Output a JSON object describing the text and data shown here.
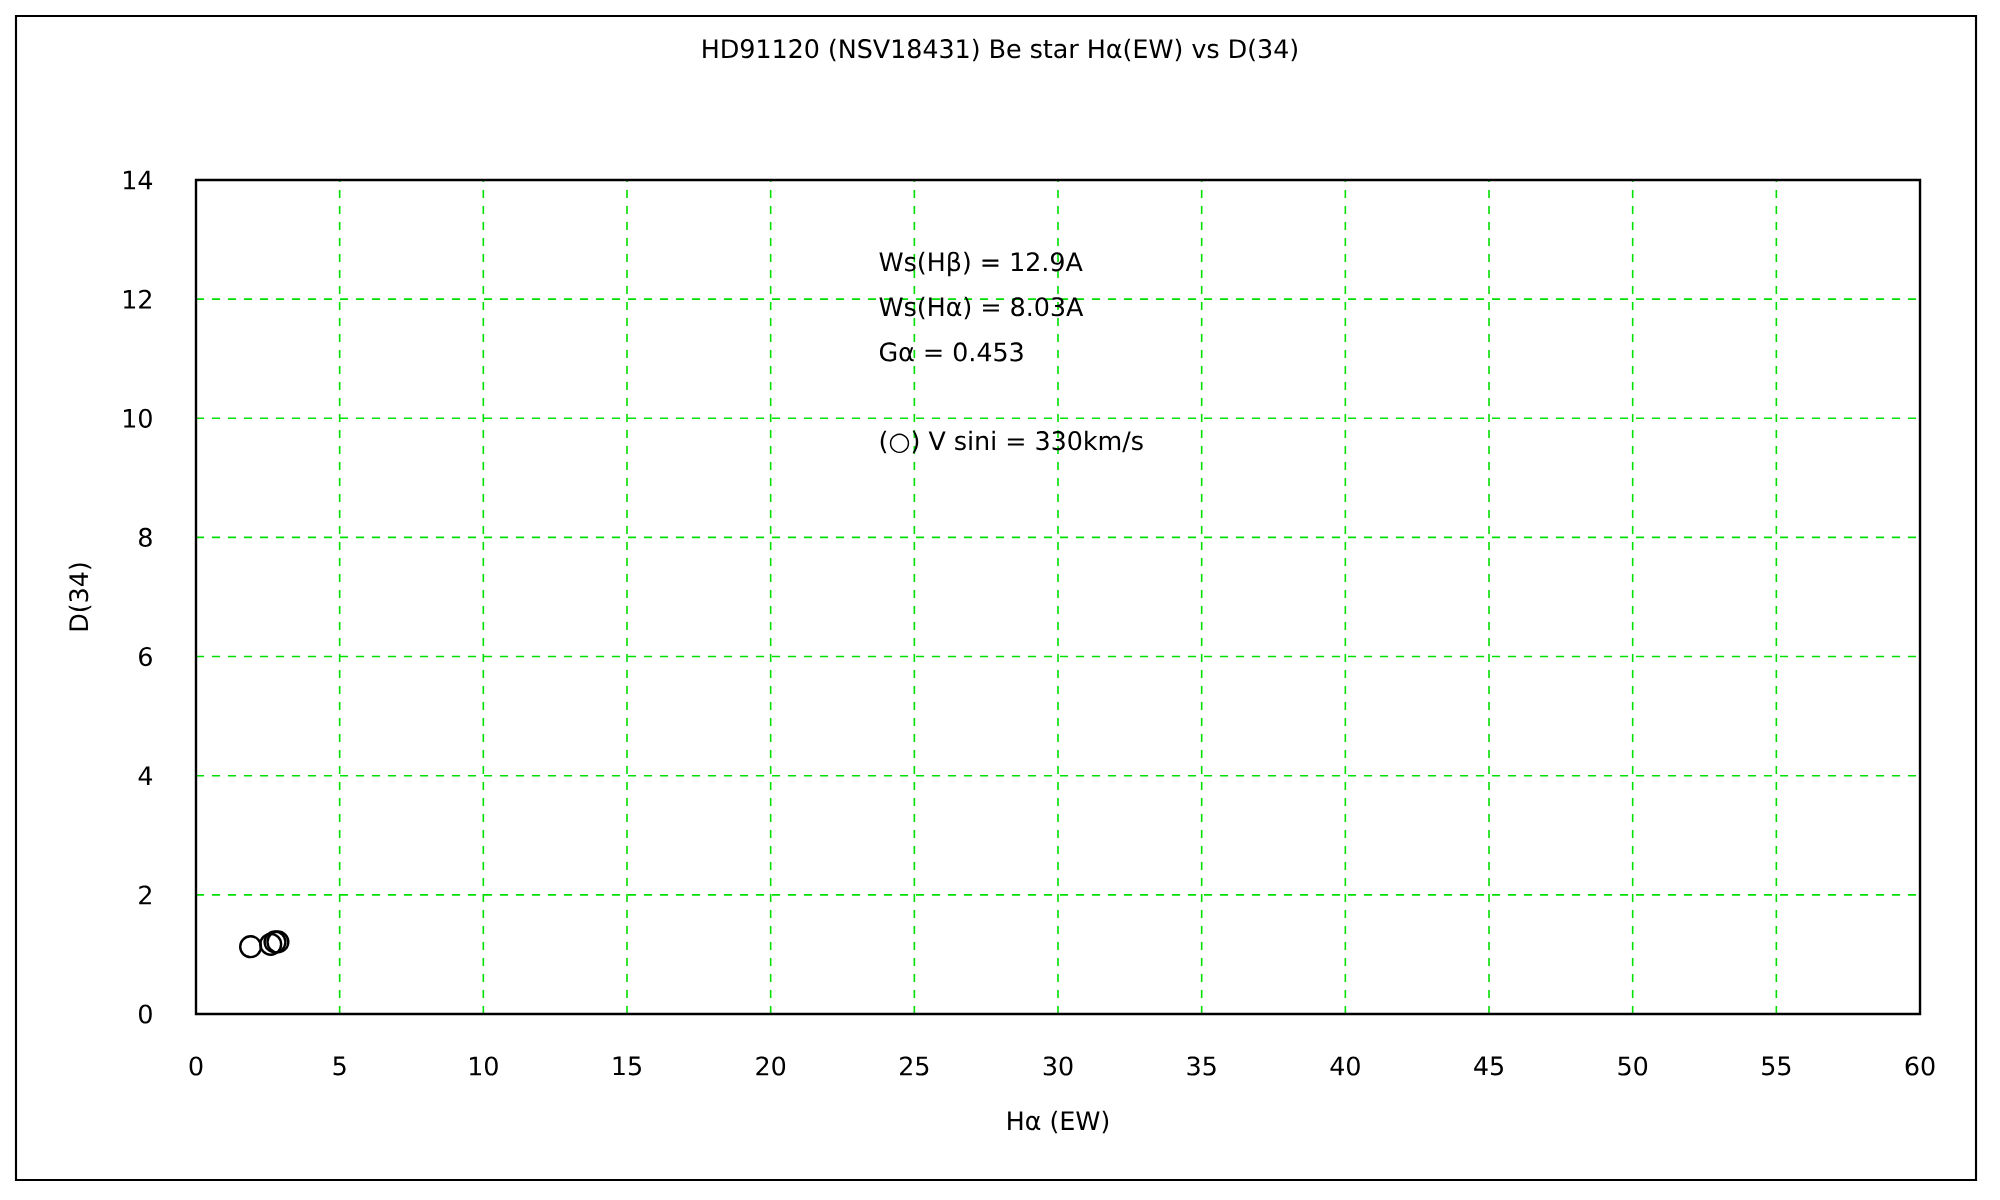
{
  "chart_data": {
    "type": "scatter",
    "title": "HD91120 (NSV18431) Be star Hα(EW) vs D(34)",
    "xlabel": "Hα (EW)",
    "ylabel": "D(34)",
    "x": [
      1.9,
      2.6,
      2.75,
      2.85
    ],
    "values": [
      1.13,
      1.17,
      1.21,
      1.21
    ],
    "color": "#000000",
    "marker": "circle",
    "xlim": [
      0,
      60
    ],
    "ylim": [
      0,
      14
    ],
    "xticks": [
      0,
      5,
      10,
      15,
      20,
      25,
      30,
      35,
      40,
      45,
      50,
      55,
      60
    ],
    "yticks": [
      0,
      2,
      4,
      6,
      8,
      10,
      12,
      14
    ],
    "grid": true,
    "annotations": [
      "Ws(Hβ) = 12.9A",
      "Ws(Hα) = 8.03A",
      "Gα = 0.453",
      "(○) V sini = 330km/s"
    ]
  }
}
